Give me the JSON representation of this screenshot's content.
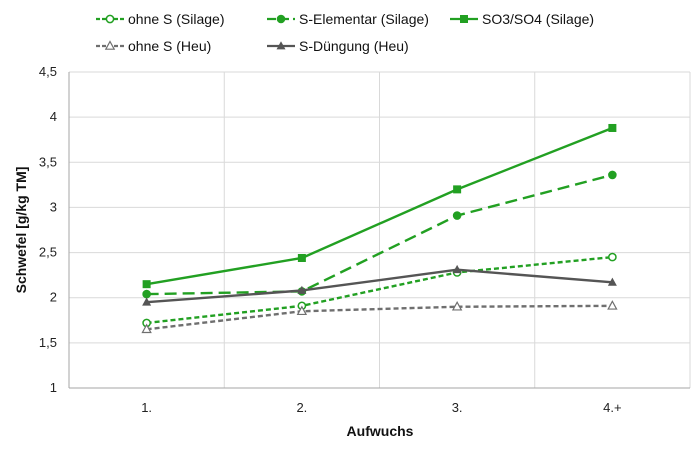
{
  "chart_data": {
    "type": "line",
    "categories": [
      "1.",
      "2.",
      "3.",
      "4.+"
    ],
    "xlabel": "Aufwuchs",
    "ylabel": "Schwefel [g/kg TM]",
    "ylim": [
      1,
      4.5
    ],
    "y_step": 0.5,
    "y_tick_labels": [
      "1",
      "1,5",
      "2",
      "2,5",
      "3",
      "3,5",
      "4",
      "4,5"
    ],
    "grid": true,
    "legend_placement": "top",
    "series": [
      {
        "name": "ohne S (Silage)",
        "values": [
          1.72,
          1.91,
          2.28,
          2.45
        ],
        "color": "#22a022",
        "dash": "dotted",
        "marker": "circle-open"
      },
      {
        "name": "S-Elementar (Silage)",
        "values": [
          2.04,
          2.07,
          2.91,
          3.36
        ],
        "color": "#22a022",
        "dash": "dashed",
        "marker": "circle-filled"
      },
      {
        "name": "SO3/SO4 (Silage)",
        "values": [
          2.15,
          2.44,
          3.2,
          3.88
        ],
        "color": "#22a022",
        "dash": "solid",
        "marker": "square-filled"
      },
      {
        "name": "ohne S (Heu)",
        "values": [
          1.65,
          1.85,
          1.9,
          1.91
        ],
        "color": "#6f6f6f",
        "dash": "dotted",
        "marker": "triangle-open"
      },
      {
        "name": "S-Düngung (Heu)",
        "values": [
          1.95,
          2.08,
          2.31,
          2.17
        ],
        "color": "#555555",
        "dash": "solid",
        "marker": "triangle-filled"
      }
    ]
  }
}
